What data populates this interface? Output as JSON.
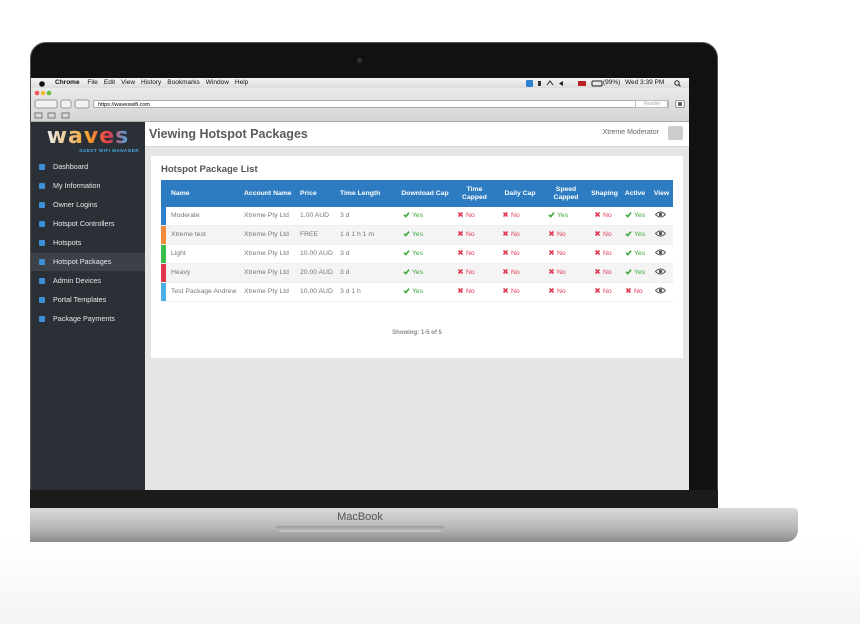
{
  "menubar": {
    "app": "Chrome",
    "menus": [
      "File",
      "Edit",
      "View",
      "History",
      "Bookmarks",
      "Window",
      "Help"
    ],
    "battery": "(99%)",
    "clock": "Wed 3:39 PM"
  },
  "browser": {
    "url": "https://waveswifi.com",
    "reader": "Reader"
  },
  "logo": {
    "name": "waves",
    "tagline": "GUEST WIFI MANAGER"
  },
  "sidebar": {
    "items": [
      "Dashboard",
      "My Information",
      "Owner Logins",
      "Hotspot Controllers",
      "Hotspots",
      "Hotspot Packages",
      "Admin Devices",
      "Portal Templates",
      "Package Payments"
    ],
    "active": 5
  },
  "header": {
    "title": "Viewing Hotspot Packages",
    "user": "Xtreme Moderator"
  },
  "panel": {
    "title": "Hotspot Package List",
    "columns": [
      "Name",
      "Account Name",
      "Price",
      "Time Length",
      "Download Cap",
      "Time Capped",
      "Daily Cap",
      "Speed Capped",
      "Shaping",
      "Active",
      "View"
    ],
    "bool_labels": {
      "yes": "Yes",
      "no": "No"
    },
    "rows": [
      {
        "color": "#2f7fcf",
        "name": "Moderate",
        "account": "Xtreme Pty Ltd",
        "price": "1.00 AUD",
        "time": "3 d",
        "flags": [
          true,
          false,
          false,
          true,
          false,
          true
        ]
      },
      {
        "color": "#f08a3c",
        "name": "Xtreme test",
        "account": "Xtreme Pty Ltd",
        "price": "FREE",
        "time": "1 d 1 h 1 m",
        "flags": [
          true,
          false,
          false,
          false,
          false,
          true
        ]
      },
      {
        "color": "#3cbf4a",
        "name": "Light",
        "account": "Xtreme Pty Ltd",
        "price": "10.00 AUD",
        "time": "3 d",
        "flags": [
          true,
          false,
          false,
          false,
          false,
          true
        ]
      },
      {
        "color": "#e0384a",
        "name": "Heavy",
        "account": "Xtreme Pty Ltd",
        "price": "20.00 AUD",
        "time": "3 d",
        "flags": [
          true,
          false,
          false,
          false,
          false,
          true
        ]
      },
      {
        "color": "#4aaee8",
        "name": "Test Package Andrew",
        "account": "Xtreme Pty Ltd",
        "price": "10.00 AUD",
        "time": "3 d 1 h",
        "flags": [
          true,
          false,
          false,
          false,
          false,
          false
        ]
      }
    ],
    "footer": "Showing: 1-5 of 5"
  },
  "device": {
    "label": "MacBook"
  }
}
